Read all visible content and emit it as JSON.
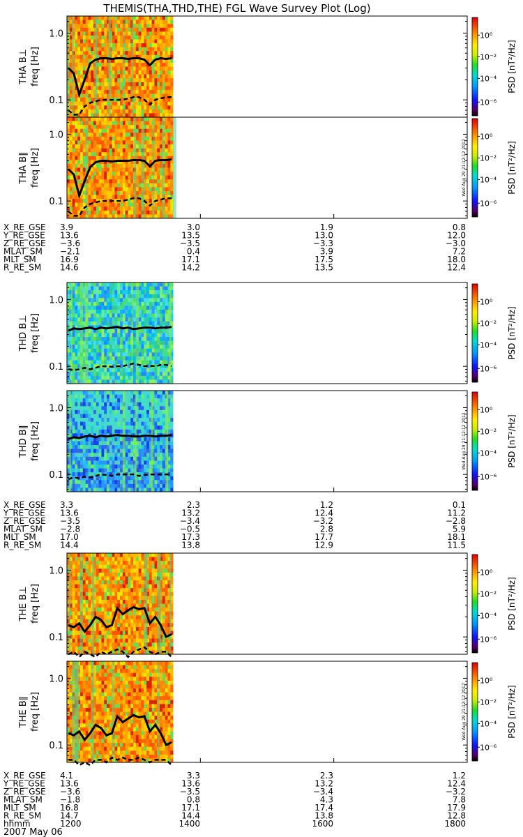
{
  "title": "THEMIS(THA,THD,THE) FGL Wave Survey Plot (Log)",
  "date_label": "2007 May 06",
  "watermark": "Wed Aug 29 21:12:12 2012",
  "colorbar_ticks": [
    "10⁰",
    "10⁻²",
    "10⁻⁴",
    "10⁻⁶"
  ],
  "chart_data": {
    "type": "heatmap",
    "x_ticks": [
      "1200",
      "1400",
      "1600",
      "1800"
    ],
    "x_unit_label": "hhmm",
    "y_ticks": [
      "1.0",
      "0.1"
    ],
    "y_scale": "log",
    "colorbar_label": "PSD [nT²/Hz]",
    "colorbar_scale": "log",
    "colorbar_range": [
      1e-07,
      10
    ],
    "data_coverage_fraction": 0.265,
    "panels": [
      {
        "probe": "THA",
        "component": "B⊥",
        "label": "THA B⊥",
        "ylabel": "freq [Hz]",
        "background": "orange",
        "solid_line": [
          0.3,
          0.25,
          0.12,
          0.2,
          0.35,
          0.4,
          0.42,
          0.42,
          0.41,
          0.42,
          0.42,
          0.41,
          0.42,
          0.42,
          0.4,
          0.33,
          0.4,
          0.42,
          0.41,
          0.42
        ],
        "dashed_line": [
          0.07,
          0.06,
          0.06,
          0.08,
          0.09,
          0.095,
          0.1,
          0.1,
          0.1,
          0.1,
          0.1,
          0.105,
          0.11,
          0.11,
          0.1,
          0.085,
          0.1,
          0.105,
          0.11,
          0.11
        ]
      },
      {
        "probe": "THA",
        "component": "B∥",
        "label": "THA B∥",
        "ylabel": "freq [Hz]",
        "background": "orange",
        "solid_line": [
          0.3,
          0.25,
          0.12,
          0.2,
          0.32,
          0.38,
          0.4,
          0.4,
          0.39,
          0.4,
          0.4,
          0.4,
          0.41,
          0.41,
          0.4,
          0.33,
          0.4,
          0.41,
          0.41,
          0.42
        ],
        "dashed_line": [
          0.07,
          0.06,
          0.06,
          0.08,
          0.09,
          0.095,
          0.1,
          0.1,
          0.1,
          0.1,
          0.1,
          0.105,
          0.11,
          0.11,
          0.1,
          0.085,
          0.1,
          0.105,
          0.11,
          0.11
        ]
      },
      {
        "probe": "THD",
        "component": "B⊥",
        "label": "THD B⊥",
        "ylabel": "freq [Hz]",
        "background": "cyan",
        "solid_line": [
          0.34,
          0.37,
          0.36,
          0.37,
          0.38,
          0.36,
          0.38,
          0.37,
          0.38,
          0.39,
          0.37,
          0.38,
          0.36,
          0.37,
          0.38,
          0.38,
          0.37,
          0.38,
          0.38,
          0.39
        ],
        "dashed_line": [
          0.09,
          0.088,
          0.09,
          0.095,
          0.09,
          0.095,
          0.1,
          0.1,
          0.098,
          0.1,
          0.1,
          0.105,
          0.11,
          0.105,
          0.1,
          0.102,
          0.1,
          0.105,
          0.105,
          0.1
        ]
      },
      {
        "probe": "THD",
        "component": "B∥",
        "label": "THD B∥",
        "ylabel": "freq [Hz]",
        "background": "blue",
        "solid_line": [
          0.34,
          0.36,
          0.35,
          0.37,
          0.38,
          0.36,
          0.38,
          0.37,
          0.38,
          0.39,
          0.38,
          0.38,
          0.37,
          0.37,
          0.38,
          0.38,
          0.37,
          0.38,
          0.38,
          0.39
        ],
        "dashed_line": [
          0.085,
          0.09,
          0.088,
          0.092,
          0.09,
          0.095,
          0.1,
          0.098,
          0.095,
          0.1,
          0.1,
          0.1,
          0.1,
          0.095,
          0.098,
          0.1,
          0.1,
          0.1,
          0.1,
          0.1
        ]
      },
      {
        "probe": "THE",
        "component": "B⊥",
        "label": "THE B⊥",
        "ylabel": "freq [Hz]",
        "background": "orange",
        "solid_line": [
          0.15,
          0.14,
          0.16,
          0.12,
          0.15,
          0.2,
          0.18,
          0.14,
          0.15,
          0.27,
          0.22,
          0.25,
          0.28,
          0.26,
          0.27,
          0.16,
          0.2,
          0.15,
          0.1,
          0.11
        ],
        "dashed_line": [
          0.055,
          0.06,
          0.05,
          0.06,
          0.055,
          0.05,
          0.06,
          0.055,
          0.06,
          0.065,
          0.06,
          0.05,
          0.06,
          0.065,
          0.07,
          0.06,
          0.055,
          0.06,
          0.06,
          0.05
        ]
      },
      {
        "probe": "THE",
        "component": "B∥",
        "label": "THE B∥",
        "ylabel": "freq [Hz]",
        "background": "orange",
        "solid_line": [
          0.15,
          0.14,
          0.16,
          0.12,
          0.15,
          0.2,
          0.18,
          0.14,
          0.15,
          0.27,
          0.22,
          0.25,
          0.28,
          0.26,
          0.27,
          0.16,
          0.2,
          0.15,
          0.1,
          0.11
        ],
        "dashed_line": [
          0.06,
          0.06,
          0.05,
          0.055,
          0.05,
          0.06,
          0.06,
          0.055,
          0.065,
          0.06,
          0.065,
          0.06,
          0.06,
          0.065,
          0.06,
          0.055,
          0.06,
          0.06,
          0.06,
          0.05
        ]
      }
    ],
    "ephemeris": [
      {
        "probe": "THA",
        "rows": [
          {
            "label": "X_RE_GSE",
            "values": [
              "3.9",
              "3.0",
              "1.9",
              "0.8"
            ]
          },
          {
            "label": "Y_RE_GSE",
            "values": [
              "13.6",
              "13.5",
              "13.0",
              "12.0"
            ]
          },
          {
            "label": "Z_RE_GSE",
            "values": [
              "−3.6",
              "−3.5",
              "−3.3",
              "−3.0"
            ]
          },
          {
            "label": "MLAT_SM",
            "values": [
              "−2.1",
              "0.4",
              "3.9",
              "7.2"
            ]
          },
          {
            "label": "MLT_SM",
            "values": [
              "16.9",
              "17.1",
              "17.5",
              "18.0"
            ]
          },
          {
            "label": "R_RE_SM",
            "values": [
              "14.6",
              "14.2",
              "13.5",
              "12.4"
            ]
          }
        ]
      },
      {
        "probe": "THD",
        "rows": [
          {
            "label": "X_RE_GSE",
            "values": [
              "3.3",
              "2.3",
              "1.2",
              "0.1"
            ]
          },
          {
            "label": "Y_RE_GSE",
            "values": [
              "13.6",
              "13.2",
              "12.4",
              "11.2"
            ]
          },
          {
            "label": "Z_RE_GSE",
            "values": [
              "−3.5",
              "−3.4",
              "−3.2",
              "−2.8"
            ]
          },
          {
            "label": "MLAT_SM",
            "values": [
              "−2.8",
              "−0.5",
              "2.8",
              "5.9"
            ]
          },
          {
            "label": "MLT_SM",
            "values": [
              "17.0",
              "17.3",
              "17.7",
              "18.1"
            ]
          },
          {
            "label": "R_RE_SM",
            "values": [
              "14.4",
              "13.8",
              "12.9",
              "11.5"
            ]
          }
        ]
      },
      {
        "probe": "THE",
        "rows": [
          {
            "label": "X_RE_GSE",
            "values": [
              "4.1",
              "3.3",
              "2.3",
              "1.2"
            ]
          },
          {
            "label": "Y_RE_GSE",
            "values": [
              "13.6",
              "13.6",
              "13.2",
              "12.4"
            ]
          },
          {
            "label": "Z_RE_GSE",
            "values": [
              "−3.6",
              "−3.5",
              "−3.4",
              "−3.2"
            ]
          },
          {
            "label": "MLAT_SM",
            "values": [
              "−1.8",
              "0.8",
              "4.3",
              "7.8"
            ]
          },
          {
            "label": "MLT_SM",
            "values": [
              "16.8",
              "17.1",
              "17.4",
              "17.9"
            ]
          },
          {
            "label": "R_RE_SM",
            "values": [
              "14.7",
              "14.4",
              "13.8",
              "12.8"
            ]
          }
        ]
      }
    ]
  }
}
